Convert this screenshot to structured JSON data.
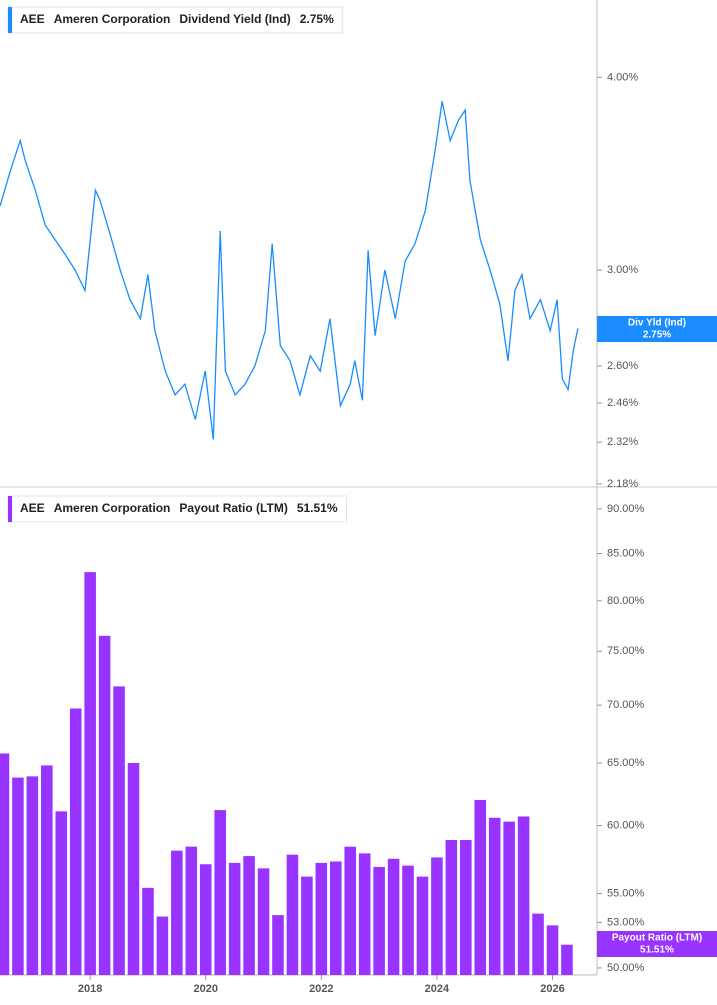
{
  "chart_data": [
    {
      "type": "line",
      "ticker": "AEE",
      "company": "Ameren Corporation",
      "log_scale": true,
      "xlim": [
        2016.44,
        2026.77
      ],
      "ylim": [
        2.17,
        4.49
      ],
      "yticks": [
        {
          "value": 4,
          "label": "4.00%"
        },
        {
          "value": 3,
          "label": "3.00%"
        },
        {
          "value": 2.6,
          "label": "2.60%"
        },
        {
          "value": 2.46,
          "label": "2.46%"
        },
        {
          "value": 2.32,
          "label": "2.32%"
        },
        {
          "value": 2.18,
          "label": "2.18%"
        }
      ],
      "series": [
        {
          "name": "Dividend Yield (Ind)",
          "short_name": "Div Yld (Ind)",
          "current_label": "2.75%",
          "color": "#1a8cff",
          "x": [
            2016.44,
            2016.62,
            2016.79,
            2016.88,
            2017.05,
            2017.22,
            2017.39,
            2017.57,
            2017.74,
            2017.91,
            2018.09,
            2018.17,
            2018.35,
            2018.52,
            2018.69,
            2018.87,
            2019.0,
            2019.12,
            2019.3,
            2019.47,
            2019.64,
            2019.82,
            2019.99,
            2020.13,
            2020.25,
            2020.34,
            2020.51,
            2020.68,
            2020.85,
            2021.03,
            2021.15,
            2021.29,
            2021.46,
            2021.63,
            2021.81,
            2021.98,
            2022.15,
            2022.33,
            2022.5,
            2022.58,
            2022.71,
            2022.81,
            2022.93,
            2023.1,
            2023.28,
            2023.45,
            2023.62,
            2023.8,
            2023.97,
            2024.09,
            2024.23,
            2024.37,
            2024.49,
            2024.57,
            2024.75,
            2024.92,
            2025.09,
            2025.23,
            2025.35,
            2025.47,
            2025.61,
            2025.79,
            2025.96,
            2026.08,
            2026.17,
            2026.27,
            2026.36,
            2026.44
          ],
          "values": [
            3.3,
            3.48,
            3.64,
            3.53,
            3.38,
            3.21,
            3.14,
            3.07,
            3.0,
            2.91,
            3.38,
            3.33,
            3.16,
            3.0,
            2.87,
            2.79,
            2.98,
            2.74,
            2.58,
            2.49,
            2.53,
            2.4,
            2.58,
            2.33,
            3.18,
            2.58,
            2.49,
            2.53,
            2.6,
            2.74,
            3.12,
            2.68,
            2.62,
            2.49,
            2.64,
            2.58,
            2.79,
            2.45,
            2.53,
            2.62,
            2.47,
            3.09,
            2.72,
            3.0,
            2.79,
            3.04,
            3.12,
            3.28,
            3.59,
            3.86,
            3.64,
            3.75,
            3.81,
            3.43,
            3.14,
            3.0,
            2.85,
            2.62,
            2.91,
            2.98,
            2.79,
            2.87,
            2.74,
            2.87,
            2.55,
            2.51,
            2.66,
            2.75
          ]
        }
      ]
    },
    {
      "type": "bar",
      "ticker": "AEE",
      "company": "Ameren Corporation",
      "log_scale": true,
      "xlim": [
        2016.44,
        2026.77
      ],
      "xticks": [
        2018,
        2020,
        2022,
        2024,
        2026
      ],
      "ylim": [
        49.55,
        92.2
      ],
      "yticks": [
        {
          "value": 90,
          "label": "90.00%"
        },
        {
          "value": 85,
          "label": "85.00%"
        },
        {
          "value": 80,
          "label": "80.00%"
        },
        {
          "value": 75,
          "label": "75.00%"
        },
        {
          "value": 70,
          "label": "70.00%"
        },
        {
          "value": 65,
          "label": "65.00%"
        },
        {
          "value": 60,
          "label": "60.00%"
        },
        {
          "value": 55,
          "label": "55.00%"
        },
        {
          "value": 53,
          "label": "53.00%"
        },
        {
          "value": 50,
          "label": "50.00%"
        }
      ],
      "series": [
        {
          "name": "Payout Ratio (LTM)",
          "current_label": "51.51%",
          "color": "#9933ff",
          "x": [
            2016.5,
            2016.75,
            2017,
            2017.25,
            2017.5,
            2017.75,
            2018,
            2018.25,
            2018.5,
            2018.75,
            2019,
            2019.25,
            2019.5,
            2019.75,
            2020,
            2020.25,
            2020.5,
            2020.75,
            2021,
            2021.25,
            2021.5,
            2021.75,
            2022,
            2022.25,
            2022.5,
            2022.75,
            2023,
            2023.25,
            2023.5,
            2023.75,
            2024,
            2024.25,
            2024.5,
            2024.75,
            2025,
            2025.25,
            2025.5,
            2025.75,
            2026,
            2026.25
          ],
          "values": [
            65.8,
            63.8,
            63.9,
            64.8,
            61.1,
            69.7,
            83.0,
            76.5,
            71.7,
            65.0,
            55.4,
            53.4,
            58.1,
            58.4,
            57.1,
            61.2,
            57.2,
            57.7,
            56.8,
            53.5,
            57.8,
            56.2,
            57.2,
            57.3,
            58.4,
            57.9,
            56.9,
            57.5,
            57.0,
            56.2,
            57.6,
            58.9,
            58.9,
            62.0,
            60.6,
            60.3,
            60.7,
            53.6,
            52.8,
            51.51
          ]
        }
      ]
    }
  ]
}
